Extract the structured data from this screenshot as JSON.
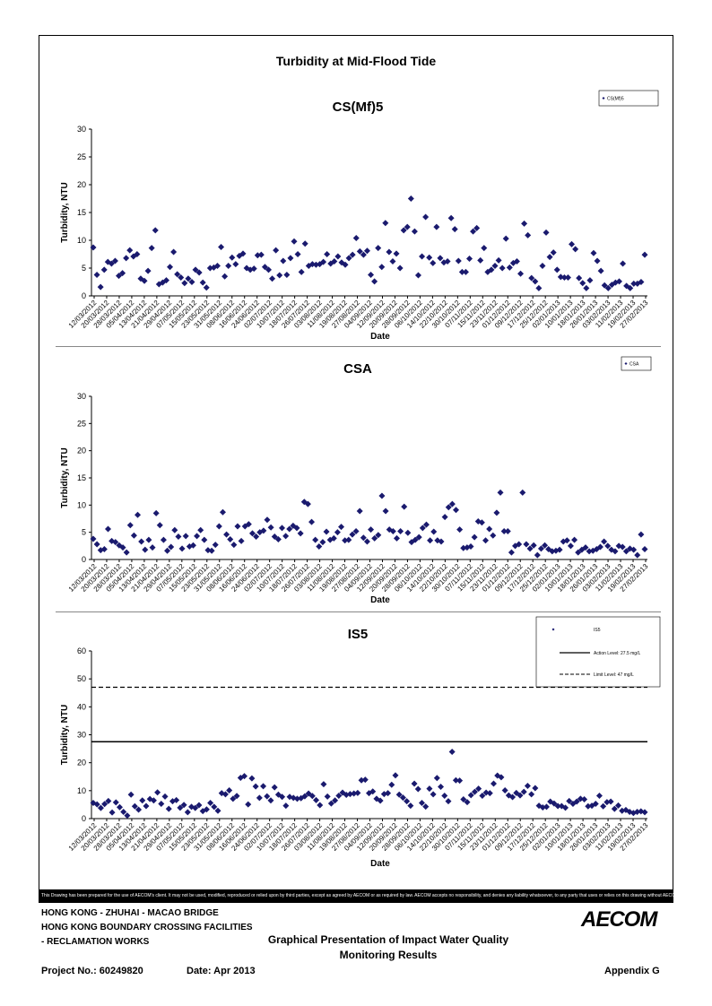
{
  "page_title": "Turbidity at Mid-Flood Tide",
  "disclaimer": "This Drawing has been prepared for the use of AECOM's client. It may not be used, modified, reproduced or relied upon by third parties, except as agreed by AECOM or as required by law. AECOM accepts no responsibility, and denies any liability whatsoever, to any party that uses or relies on this drawing without AECOM's express written consent.",
  "footer": {
    "line1": "HONG KONG - ZHUHAI - MACAO BRIDGE",
    "line2": "HONG KONG BOUNDARY CROSSING FACILITIES",
    "line3": "- RECLAMATION WORKS",
    "title1": "Graphical Presentation of Impact Water Quality",
    "title2": "Monitoring Results",
    "project": "Project No.: 60249820",
    "date": "Date: Apr 2013",
    "appendix": "Appendix G",
    "logo": "AECOM"
  },
  "chart_data": [
    {
      "type": "scatter",
      "title": "CS(Mf)5",
      "xlabel": "Date",
      "ylabel": "Turbidity, NTU",
      "ylim": [
        0,
        30
      ],
      "yticks": [
        0,
        5,
        10,
        15,
        20,
        25,
        30
      ],
      "color": "#1a1a6e",
      "legend": [
        "CS(Mf)5"
      ],
      "x_ticks": [
        "12/03/2012",
        "20/03/2012",
        "28/03/2012",
        "05/04/2012",
        "13/04/2012",
        "21/04/2012",
        "29/04/2012",
        "07/05/2012",
        "15/05/2012",
        "23/05/2012",
        "31/05/2012",
        "08/06/2012",
        "16/06/2012",
        "24/06/2012",
        "02/07/2012",
        "10/07/2012",
        "18/07/2012",
        "26/07/2012",
        "03/08/2012",
        "11/08/2012",
        "19/08/2012",
        "27/08/2012",
        "04/09/2012",
        "12/09/2012",
        "20/09/2012",
        "28/09/2012",
        "06/10/2012",
        "14/10/2012",
        "22/10/2012",
        "30/10/2012",
        "07/11/2012",
        "15/11/2012",
        "23/11/2012",
        "01/12/2012",
        "09/12/2012",
        "17/12/2012",
        "25/12/2012",
        "02/01/2013",
        "10/01/2013",
        "18/01/2013",
        "26/01/2013",
        "03/02/2013",
        "11/02/2013",
        "19/02/2013",
        "27/02/2013"
      ],
      "values": [
        8.7,
        3.8,
        1.6,
        4.7,
        6.1,
        5.8,
        6.3,
        3.6,
        4.1,
        6.8,
        8.2,
        7.1,
        7.5,
        3.1,
        2.7,
        4.5,
        8.6,
        11.8,
        2.1,
        2.4,
        2.8,
        5.2,
        7.9,
        3.9,
        3.3,
        2.3,
        3.1,
        2.5,
        4.7,
        4.2,
        2.4,
        1.5,
        5.0,
        5.1,
        5.4,
        8.8,
        3.5,
        5.4,
        6.9,
        5.7,
        7.2,
        7.6,
        5.0,
        4.7,
        4.9,
        7.3,
        7.4,
        5.2,
        4.7,
        3.1,
        8.2,
        3.7,
        6.3,
        3.8,
        6.8,
        9.8,
        7.5,
        4.3,
        9.4,
        5.4,
        5.7,
        5.6,
        5.7,
        6.1,
        7.5,
        5.8,
        6.2,
        7.1,
        6.0,
        5.6,
        6.8,
        7.4,
        10.4,
        8.0,
        7.4,
        8.1,
        3.8,
        2.6,
        8.6,
        5.2,
        13.1,
        7.9,
        6.2,
        7.6,
        5.0,
        11.8,
        12.4,
        17.5,
        11.6,
        3.7,
        7.1,
        14.2,
        6.9,
        5.9,
        12.4,
        6.8,
        6.0,
        6.2,
        14.0,
        12.0,
        6.3,
        4.3,
        4.3,
        6.7,
        11.6,
        12.2,
        6.4,
        8.6,
        4.3,
        4.7,
        5.4,
        6.4,
        5.0,
        10.3,
        5.1,
        5.9,
        6.2,
        4.0,
        13.0,
        10.9,
        3.2,
        2.6,
        1.4,
        5.4,
        11.4,
        7.0,
        7.8,
        4.7,
        3.4,
        3.3,
        3.3,
        9.3,
        8.4,
        3.2,
        2.3,
        1.4,
        2.8,
        7.7,
        6.3,
        4.5,
        1.9,
        1.4,
        2.0,
        2.4,
        2.6,
        5.8,
        1.8,
        1.4,
        2.2,
        2.2,
        2.5,
        7.4
      ]
    },
    {
      "type": "scatter",
      "title": "CSA",
      "xlabel": "Date",
      "ylabel": "Turbidity, NTU",
      "ylim": [
        0,
        30
      ],
      "yticks": [
        0,
        5,
        10,
        15,
        20,
        25,
        30
      ],
      "color": "#1a1a6e",
      "legend": [
        "CSA"
      ],
      "x_ticks": [
        "12/03/2012",
        "20/03/2012",
        "28/03/2012",
        "05/04/2012",
        "13/04/2012",
        "21/04/2012",
        "29/04/2012",
        "07/05/2012",
        "15/05/2012",
        "23/05/2012",
        "31/05/2012",
        "08/06/2012",
        "16/06/2012",
        "24/06/2012",
        "02/07/2012",
        "10/07/2012",
        "18/07/2012",
        "26/07/2012",
        "03/08/2012",
        "11/08/2012",
        "19/08/2012",
        "27/08/2012",
        "04/09/2012",
        "12/09/2012",
        "20/09/2012",
        "28/09/2012",
        "06/10/2012",
        "14/10/2012",
        "22/10/2012",
        "30/10/2012",
        "07/11/2012",
        "15/11/2012",
        "23/11/2012",
        "01/12/2012",
        "09/12/2012",
        "17/12/2012",
        "25/12/2012",
        "02/01/2013",
        "10/01/2013",
        "18/01/2013",
        "26/01/2013",
        "03/02/2013",
        "11/02/2013",
        "19/02/2013",
        "27/02/2013"
      ],
      "values": [
        3.8,
        2.8,
        1.7,
        1.9,
        5.6,
        3.4,
        3.2,
        2.6,
        2.2,
        1.3,
        6.3,
        4.4,
        8.2,
        3.3,
        1.8,
        3.6,
        2.2,
        8.5,
        6.3,
        3.6,
        1.6,
        2.3,
        5.4,
        4.2,
        2.0,
        4.3,
        2.4,
        2.6,
        4.3,
        5.4,
        3.6,
        1.7,
        1.6,
        2.7,
        6.1,
        8.7,
        4.6,
        3.7,
        2.7,
        6.1,
        3.4,
        6.1,
        6.5,
        4.8,
        4.2,
        5.0,
        5.3,
        7.3,
        5.9,
        4.2,
        3.7,
        5.8,
        4.3,
        5.6,
        6.2,
        5.8,
        4.8,
        10.6,
        10.2,
        6.9,
        3.6,
        2.4,
        3.2,
        5.1,
        3.6,
        3.9,
        5.0,
        6.0,
        3.5,
        3.6,
        4.6,
        5.2,
        8.9,
        4.0,
        3.3,
        5.5,
        3.9,
        4.5,
        11.7,
        8.9,
        5.5,
        5.2,
        3.9,
        5.2,
        9.7,
        4.9,
        3.2,
        3.6,
        4.1,
        5.8,
        6.4,
        3.5,
        5.1,
        3.5,
        3.3,
        7.8,
        9.6,
        10.2,
        9.1,
        5.5,
        2.1,
        2.2,
        2.4,
        4.1,
        7.0,
        6.8,
        3.5,
        5.6,
        4.4,
        8.6,
        12.3,
        5.2,
        5.2,
        1.3,
        2.5,
        2.8,
        12.3,
        2.8,
        2.0,
        2.6,
        0.8,
        2.0,
        2.6,
        1.9,
        1.5,
        1.6,
        1.8,
        3.3,
        3.5,
        2.5,
        3.6,
        1.3,
        1.8,
        2.2,
        1.5,
        1.6,
        1.9,
        2.3,
        3.3,
        2.5,
        1.8,
        1.5,
        2.5,
        2.3,
        1.5,
        2.0,
        1.8,
        0.8,
        4.6,
        1.9
      ]
    },
    {
      "type": "scatter",
      "title": "IS5",
      "xlabel": "Date",
      "ylabel": "Turbidity, NTU",
      "ylim": [
        0,
        60
      ],
      "yticks": [
        0,
        10,
        20,
        30,
        40,
        50,
        60
      ],
      "color": "#1a1a6e",
      "legend": [
        "IS5",
        "Action Level: 27.5 mg/L",
        "Limit Level: 47 mg/L"
      ],
      "action_level": 27.5,
      "limit_level": 47,
      "x_ticks": [
        "12/03/2012",
        "20/03/2012",
        "28/03/2012",
        "05/04/2012",
        "13/04/2012",
        "21/04/2012",
        "29/04/2012",
        "07/05/2012",
        "15/05/2012",
        "23/05/2012",
        "31/05/2012",
        "08/06/2012",
        "16/06/2012",
        "24/06/2012",
        "02/07/2012",
        "10/07/2012",
        "18/07/2012",
        "26/07/2012",
        "03/08/2012",
        "11/08/2012",
        "19/08/2012",
        "27/08/2012",
        "04/09/2012",
        "12/09/2012",
        "20/09/2012",
        "28/09/2012",
        "06/10/2012",
        "14/10/2012",
        "22/10/2012",
        "30/10/2012",
        "07/11/2012",
        "15/11/2012",
        "23/11/2012",
        "01/12/2012",
        "09/12/2012",
        "17/12/2012",
        "25/12/2012",
        "02/01/2013",
        "10/01/2013",
        "18/01/2013",
        "26/01/2013",
        "03/02/2013",
        "11/02/2013",
        "19/02/2013",
        "27/02/2013"
      ],
      "values": [
        5.6,
        5.1,
        3.8,
        5.2,
        6.3,
        2.2,
        5.8,
        4.1,
        2.4,
        1.1,
        8.6,
        4.4,
        3.2,
        6.5,
        4.5,
        7.0,
        6.5,
        9.4,
        5.3,
        7.9,
        3.5,
        6.2,
        6.6,
        3.9,
        4.9,
        2.3,
        4.2,
        3.8,
        4.8,
        2.7,
        3.3,
        5.6,
        4.2,
        2.8,
        9.1,
        8.7,
        10.1,
        7.1,
        8.1,
        14.6,
        15.2,
        5.1,
        14.4,
        11.5,
        7.4,
        11.6,
        8.0,
        6.5,
        11.2,
        8.6,
        7.8,
        4.6,
        7.8,
        7.4,
        7.1,
        7.3,
        8.0,
        9.0,
        8.1,
        6.6,
        4.8,
        12.3,
        7.9,
        5.4,
        6.5,
        8.2,
        9.3,
        8.5,
        8.8,
        9.0,
        9.2,
        13.7,
        13.9,
        9.1,
        9.7,
        7.1,
        6.4,
        8.8,
        9.1,
        12.1,
        15.5,
        8.6,
        7.5,
        6.2,
        4.6,
        12.5,
        10.6,
        5.6,
        4.3,
        10.7,
        8.7,
        14.5,
        11.4,
        8.2,
        6.2,
        23.9,
        13.7,
        13.6,
        6.9,
        5.9,
        8.4,
        9.6,
        10.7,
        8.2,
        9.3,
        9.1,
        12.5,
        15.4,
        14.8,
        10.1,
        8.3,
        7.7,
        9.2,
        8.3,
        9.6,
        11.7,
        8.7,
        10.9,
        4.6,
        4.0,
        4.2,
        6.1,
        5.4,
        4.5,
        4.5,
        3.9,
        6.3,
        5.3,
        6.1,
        7.1,
        6.9,
        4.4,
        4.6,
        5.3,
        8.2,
        4.4,
        5.9,
        6.1,
        3.5,
        4.7,
        2.8,
        3.1,
        2.4,
        2.0,
        2.4,
        2.6,
        2.3
      ]
    }
  ]
}
